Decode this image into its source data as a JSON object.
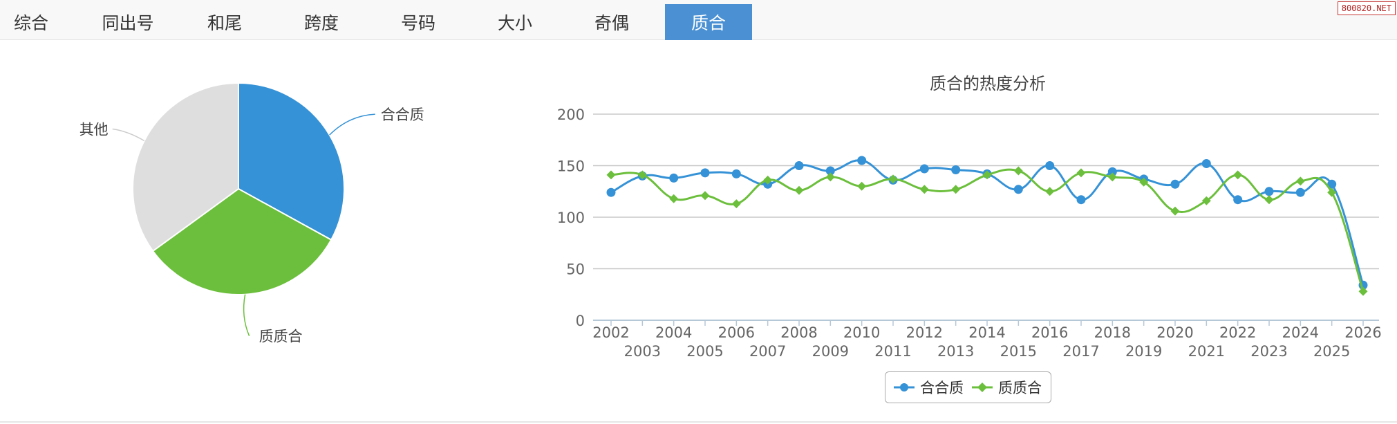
{
  "tabs": [
    {
      "label": "综合",
      "active": false
    },
    {
      "label": "同出号",
      "active": false
    },
    {
      "label": "和尾",
      "active": false
    },
    {
      "label": "跨度",
      "active": false
    },
    {
      "label": "号码",
      "active": false
    },
    {
      "label": "大小",
      "active": false
    },
    {
      "label": "奇偶",
      "active": false
    },
    {
      "label": "质合",
      "active": true
    }
  ],
  "watermark": "800820.NET",
  "colors": {
    "blue": "#3592d6",
    "green": "#6cbf3c",
    "gray": "#dedede",
    "tab_active": "#4a90d2"
  },
  "chart_data": [
    {
      "type": "pie",
      "slices": [
        {
          "label": "合合质",
          "value": 33,
          "color": "#3592d6"
        },
        {
          "label": "质质合",
          "value": 32,
          "color": "#6cbf3c"
        },
        {
          "label": "其他",
          "value": 35,
          "color": "#dedede"
        }
      ]
    },
    {
      "type": "line",
      "title": "质合的热度分析",
      "x": [
        "2002",
        "2003",
        "2004",
        "2005",
        "2006",
        "2007",
        "2008",
        "2009",
        "2010",
        "2011",
        "2012",
        "2013",
        "2014",
        "2015",
        "2016",
        "2017",
        "2018",
        "2019",
        "2020",
        "2021",
        "2022",
        "2023",
        "2024",
        "2025",
        "2026"
      ],
      "ylim": [
        0,
        200
      ],
      "yticks": [
        0,
        50,
        100,
        150,
        200
      ],
      "grid": true,
      "legend_position": "bottom-center",
      "series": [
        {
          "name": "合合质",
          "color": "#3592d6",
          "marker": "circle",
          "values": [
            124,
            140,
            138,
            143,
            142,
            132,
            150,
            145,
            155,
            136,
            147,
            146,
            142,
            127,
            150,
            117,
            144,
            137,
            132,
            152,
            117,
            125,
            124,
            132,
            34
          ]
        },
        {
          "name": "质质合",
          "color": "#6cbf3c",
          "marker": "diamond",
          "values": [
            141,
            141,
            118,
            121,
            113,
            136,
            126,
            139,
            130,
            137,
            127,
            127,
            141,
            145,
            125,
            143,
            139,
            134,
            106,
            116,
            141,
            117,
            135,
            124,
            28
          ]
        }
      ]
    }
  ]
}
